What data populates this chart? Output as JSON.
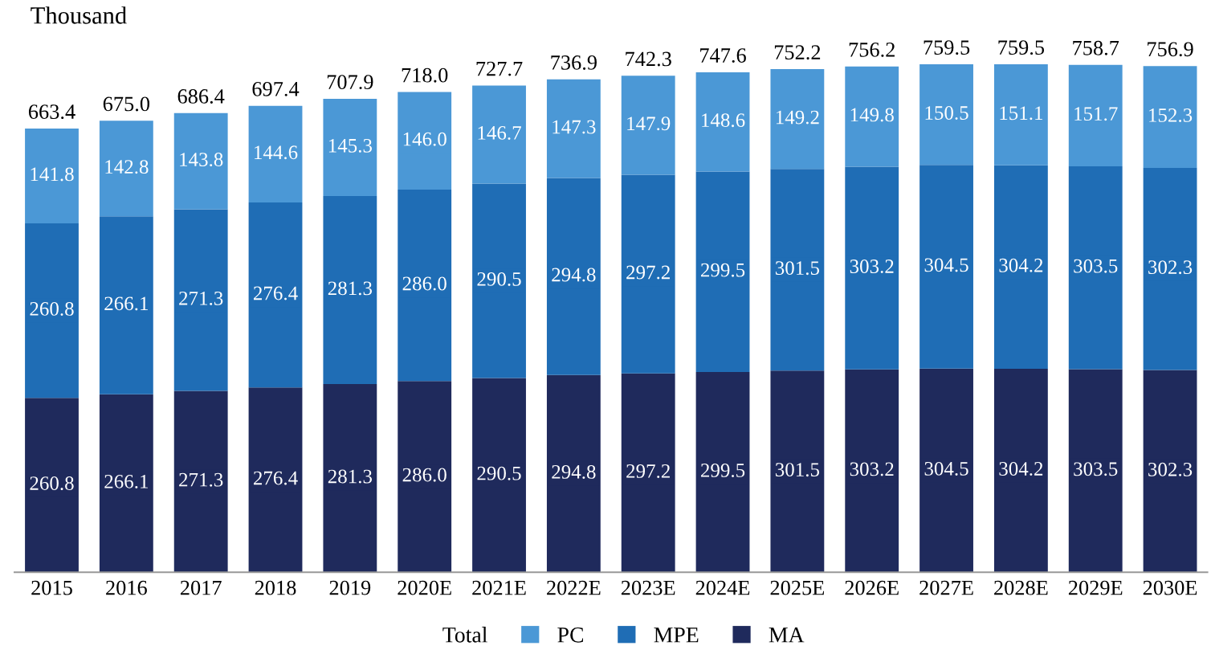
{
  "chart_data": {
    "type": "bar",
    "stacked": true,
    "ylabel": "Thousand",
    "legend_title": "Total",
    "legend": "bottom",
    "grid": false,
    "categories": [
      "2015",
      "2016",
      "2017",
      "2018",
      "2019",
      "2020E",
      "2021E",
      "2022E",
      "2023E",
      "2024E",
      "2025E",
      "2026E",
      "2027E",
      "2028E",
      "2029E",
      "2030E"
    ],
    "series": [
      {
        "name": "MA",
        "color": "#1f2a5c",
        "values": [
          260.8,
          266.1,
          271.3,
          276.4,
          281.3,
          286.0,
          290.5,
          294.8,
          297.2,
          299.5,
          301.5,
          303.2,
          304.5,
          304.2,
          303.5,
          302.3
        ],
        "value_labels": [
          "260.8",
          "266.1",
          "271.3",
          "276.4",
          "281.3",
          "286.0",
          "290.5",
          "294.8",
          "297.2",
          "299.5",
          "301.5",
          "303.2",
          "304.5",
          "304.2",
          "303.5",
          "302.3"
        ]
      },
      {
        "name": "MPE",
        "color": "#1f6db5",
        "values": [
          260.8,
          266.1,
          271.3,
          276.4,
          281.3,
          286.0,
          290.5,
          294.8,
          297.2,
          299.5,
          301.5,
          303.2,
          304.5,
          304.2,
          303.5,
          302.3
        ],
        "value_labels": [
          "260.8",
          "266.1",
          "271.3",
          "276.4",
          "281.3",
          "286.0",
          "290.5",
          "294.8",
          "297.2",
          "299.5",
          "301.5",
          "303.2",
          "304.5",
          "304.2",
          "303.5",
          "302.3"
        ]
      },
      {
        "name": "PC",
        "color": "#4b98d6",
        "values": [
          141.8,
          142.8,
          143.8,
          144.6,
          145.3,
          146.0,
          146.7,
          147.3,
          147.9,
          148.6,
          149.2,
          149.8,
          150.5,
          151.1,
          151.7,
          152.3
        ],
        "value_labels": [
          "141.8",
          "142.8",
          "143.8",
          "144.6",
          "145.3",
          "146.0",
          "146.7",
          "147.3",
          "147.9",
          "148.6",
          "149.2",
          "149.8",
          "150.5",
          "151.1",
          "151.7",
          "152.3"
        ]
      }
    ],
    "totals": [
      "663.4",
      "675.0",
      "686.4",
      "697.4",
      "707.9",
      "718.0",
      "727.7",
      "736.9",
      "742.3",
      "747.6",
      "752.2",
      "756.2",
      "759.5",
      "759.5",
      "758.7",
      "756.9"
    ]
  }
}
